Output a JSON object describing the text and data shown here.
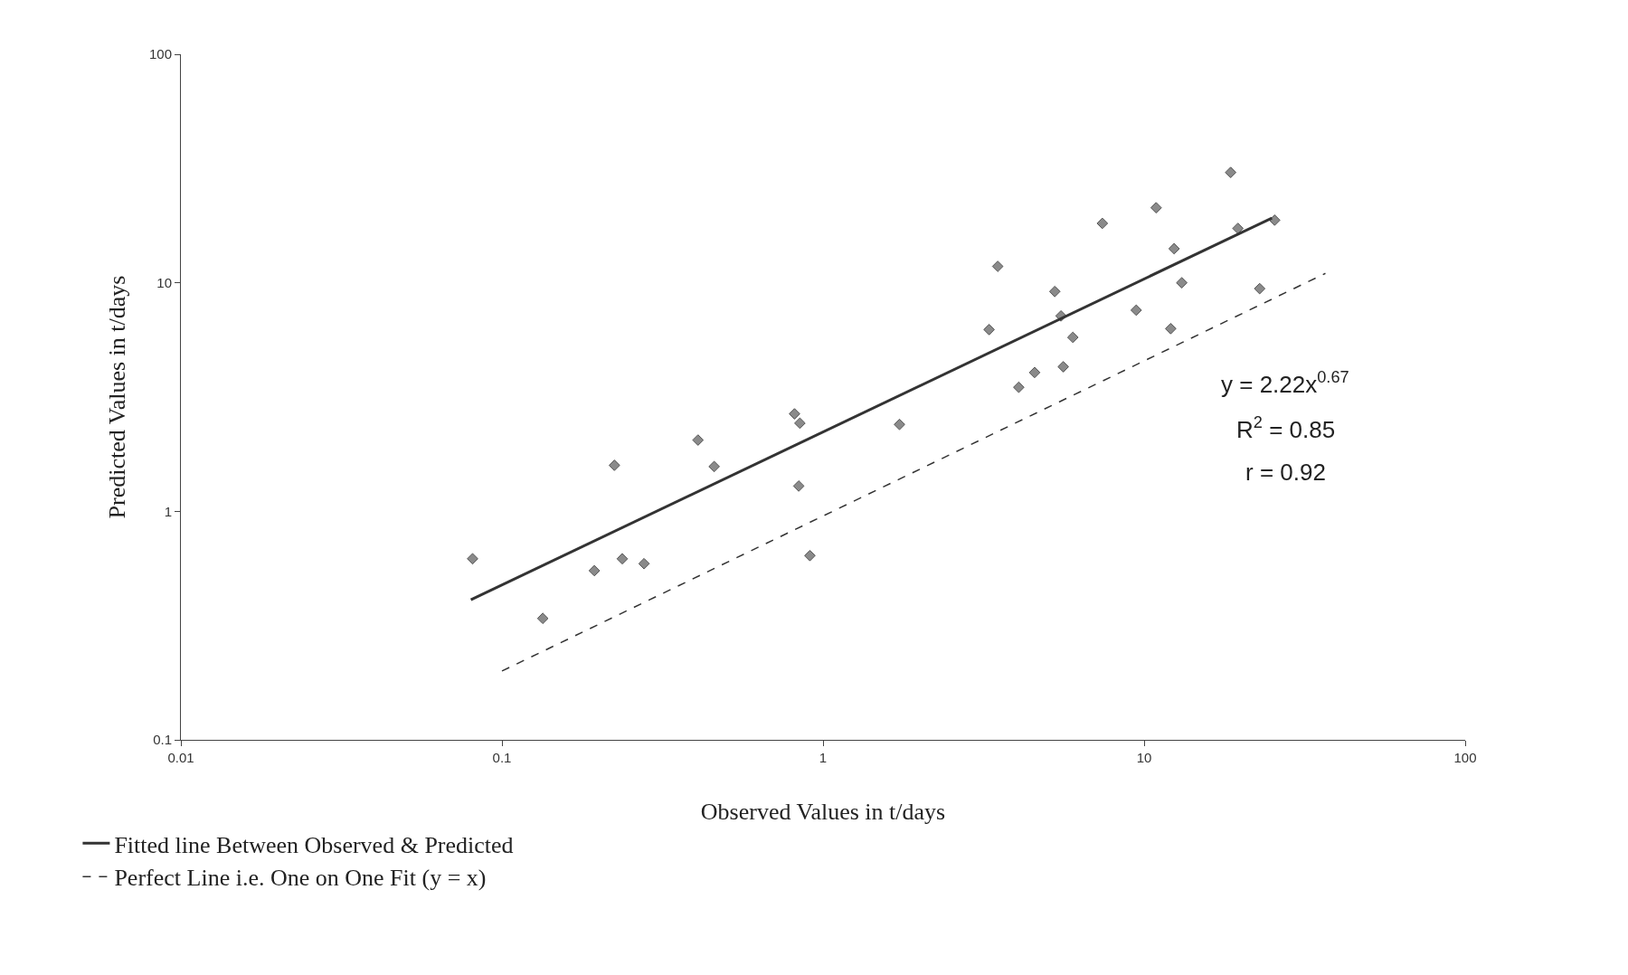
{
  "chart_data": {
    "type": "scatter",
    "xlabel": "Observed Values in t/days",
    "ylabel": "Predicted Values in t/days",
    "log": "xy",
    "xlim": [
      0.01,
      100
    ],
    "ylim": [
      0.1,
      100
    ],
    "xticks": [
      0.01,
      0.1,
      1,
      10,
      100
    ],
    "yticks": [
      0.1,
      1,
      10,
      100
    ],
    "grid": false,
    "legend": "bottom left",
    "annotations": [
      "y = 2.22x$^{0.67}$",
      "R$^{2}$ = 0.85",
      "r = 0.92"
    ],
    "series": [
      {
        "marker": "diamond",
        "color": "#8a8a8a",
        "x": [
          0.081,
          0.134,
          0.194,
          0.224,
          0.237,
          0.277,
          0.408,
          0.458,
          0.815,
          0.847,
          0.84,
          0.91,
          1.73,
          3.29,
          3.5,
          4.07,
          4.56,
          5.27,
          5.6,
          5.51,
          6.0,
          7.41,
          9.45,
          10.9,
          12.4,
          12.1,
          13.1,
          18.6,
          19.6,
          22.9,
          25.5
        ],
        "values": [
          0.62,
          0.34,
          0.55,
          1.59,
          0.62,
          0.59,
          2.05,
          1.57,
          2.67,
          2.43,
          1.29,
          0.64,
          2.4,
          6.24,
          11.8,
          3.49,
          4.05,
          9.16,
          4.29,
          7.16,
          5.77,
          18.2,
          7.59,
          21.3,
          14.1,
          6.3,
          10,
          30.4,
          17.3,
          9.43,
          18.8
        ]
      },
      {
        "type": "line",
        "name": "Fitted line Between Observed & Predicted",
        "marker": "none",
        "line_style": "solid",
        "color": "#333333",
        "x": [
          0.08,
          25
        ],
        "values": [
          0.41,
          19.2
        ]
      },
      {
        "type": "line",
        "name": "Perfect Line i.e. One on One Fit (y = x)",
        "marker": "none",
        "line_style": "dashed",
        "color": "#333333",
        "x": [
          0.1,
          36.7
        ],
        "values": [
          0.2,
          11
        ]
      }
    ]
  }
}
